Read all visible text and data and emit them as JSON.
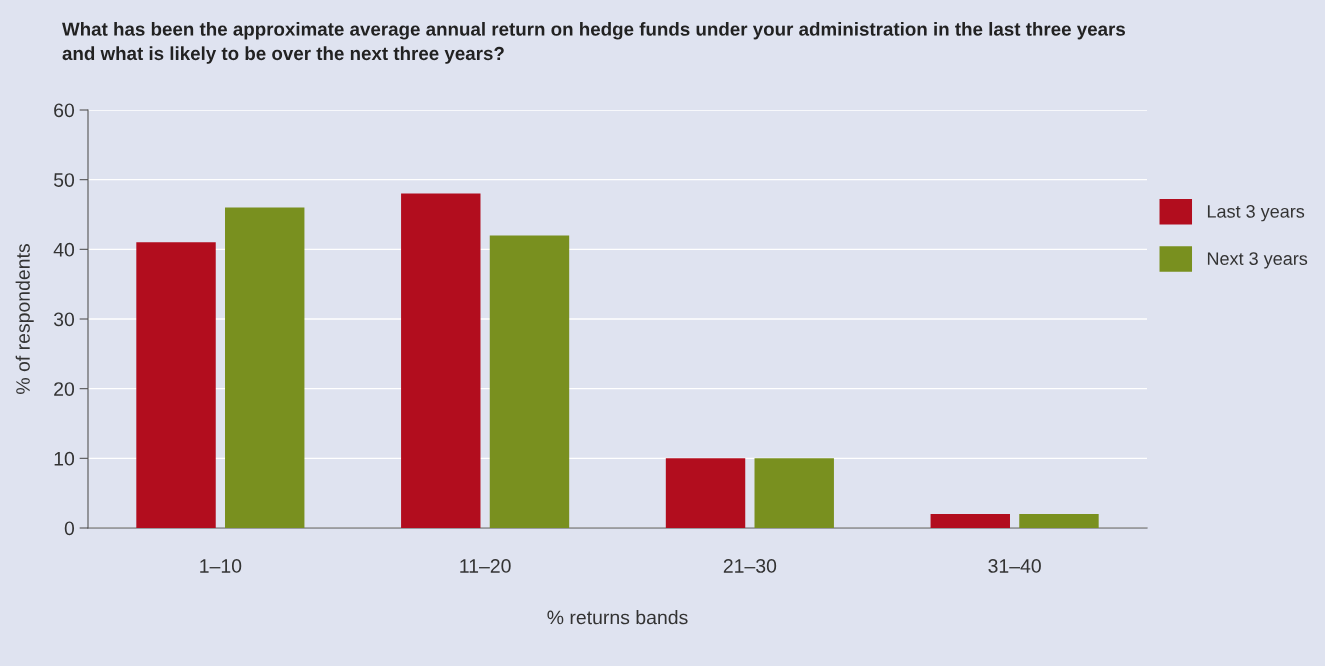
{
  "chart_data": {
    "type": "bar",
    "title": "What has been the approximate average annual return on hedge funds under your administration in the last three years\nand what is likely to be over the next three years?",
    "xlabel": "% returns bands",
    "ylabel": "% of respondents",
    "categories": [
      "1–10",
      "11–20",
      "21–30",
      "31–40"
    ],
    "series": [
      {
        "name": "Last 3 years",
        "color": "#b20d1e",
        "values": [
          41,
          48,
          10,
          2
        ]
      },
      {
        "name": "Next 3 years",
        "color": "#79901f",
        "values": [
          46,
          42,
          10,
          2
        ]
      }
    ],
    "ylim": [
      0,
      60
    ],
    "yticks": [
      0,
      10,
      20,
      30,
      40,
      50,
      60
    ],
    "grid": "y",
    "legend": "right"
  }
}
